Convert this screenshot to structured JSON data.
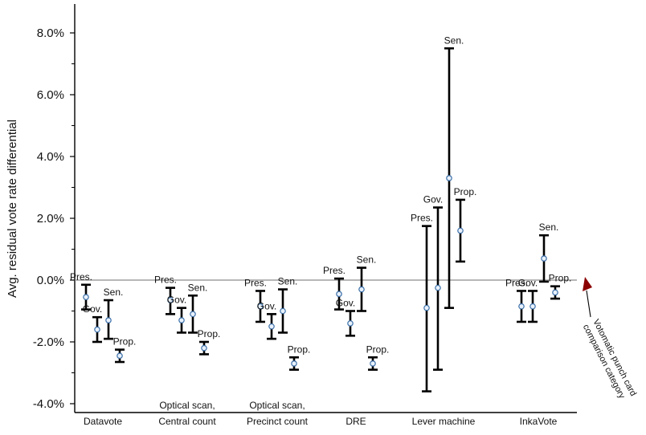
{
  "chart_data": {
    "type": "errorbar",
    "ylabel": "Avg. residual vote rate differential",
    "ylim": [
      -4.6,
      8.8
    ],
    "yticks": [
      {
        "value": -4,
        "label": "-4.0%"
      },
      {
        "value": -2,
        "label": "-2.0%"
      },
      {
        "value": 0,
        "label": "0.0%"
      },
      {
        "value": 2,
        "label": "2.0%"
      },
      {
        "value": 4,
        "label": "4.0%"
      },
      {
        "value": 6,
        "label": "6.0%"
      },
      {
        "value": 8,
        "label": "8.0%"
      }
    ],
    "reference_line": 0,
    "annotation": {
      "text": [
        "Votomatic punch card",
        "comparison category"
      ],
      "color": "#8b0000"
    },
    "groups": [
      {
        "name": "Datavote",
        "label_lines": [
          "Datavote"
        ],
        "points": [
          {
            "series": "Pres.",
            "value": -0.55,
            "low": -0.95,
            "high": -0.15
          },
          {
            "series": "Gov.",
            "value": -1.6,
            "low": -2.0,
            "high": -1.2
          },
          {
            "series": "Sen.",
            "value": -1.3,
            "low": -1.9,
            "high": -0.65
          },
          {
            "series": "Prop.",
            "value": -2.45,
            "low": -2.65,
            "high": -2.25
          }
        ]
      },
      {
        "name": "Optical scan, Central count",
        "label_lines": [
          "Optical scan,",
          "Central count"
        ],
        "points": [
          {
            "series": "Pres.",
            "value": -0.65,
            "low": -1.1,
            "high": -0.25
          },
          {
            "series": "Gov.",
            "value": -1.3,
            "low": -1.7,
            "high": -0.9
          },
          {
            "series": "Sen.",
            "value": -1.1,
            "low": -1.7,
            "high": -0.5
          },
          {
            "series": "Prop.",
            "value": -2.2,
            "low": -2.4,
            "high": -2.0
          }
        ]
      },
      {
        "name": "Optical scan, Precinct count",
        "label_lines": [
          "Optical scan,",
          "Precinct count"
        ],
        "points": [
          {
            "series": "Pres.",
            "value": -0.85,
            "low": -1.35,
            "high": -0.35
          },
          {
            "series": "Gov.",
            "value": -1.5,
            "low": -1.9,
            "high": -1.1
          },
          {
            "series": "Sen.",
            "value": -1.0,
            "low": -1.7,
            "high": -0.3
          },
          {
            "series": "Prop.",
            "value": -2.7,
            "low": -2.9,
            "high": -2.5
          }
        ]
      },
      {
        "name": "DRE",
        "label_lines": [
          "DRE"
        ],
        "points": [
          {
            "series": "Pres.",
            "value": -0.45,
            "low": -0.95,
            "high": 0.05
          },
          {
            "series": "Gov.",
            "value": -1.4,
            "low": -1.8,
            "high": -1.0
          },
          {
            "series": "Sen.",
            "value": -0.3,
            "low": -1.0,
            "high": 0.4
          },
          {
            "series": "Prop.",
            "value": -2.7,
            "low": -2.9,
            "high": -2.5
          }
        ]
      },
      {
        "name": "Lever machine",
        "label_lines": [
          "Lever machine"
        ],
        "points": [
          {
            "series": "Pres.",
            "value": -0.9,
            "low": -3.6,
            "high": 1.75
          },
          {
            "series": "Gov.",
            "value": -0.25,
            "low": -2.9,
            "high": 2.35
          },
          {
            "series": "Sen.",
            "value": 3.3,
            "low": -0.9,
            "high": 7.5
          },
          {
            "series": "Prop.",
            "value": 1.6,
            "low": 0.6,
            "high": 2.6
          }
        ]
      },
      {
        "name": "InkaVote",
        "label_lines": [
          "InkaVote"
        ],
        "points": [
          {
            "series": "Pres.",
            "value": -0.85,
            "low": -1.35,
            "high": -0.35
          },
          {
            "series": "Gov.",
            "value": -0.85,
            "low": -1.35,
            "high": -0.35
          },
          {
            "series": "Sen.",
            "value": 0.7,
            "low": -0.05,
            "high": 1.45
          },
          {
            "series": "Prop.",
            "value": -0.4,
            "low": -0.6,
            "high": -0.2
          }
        ]
      }
    ]
  }
}
